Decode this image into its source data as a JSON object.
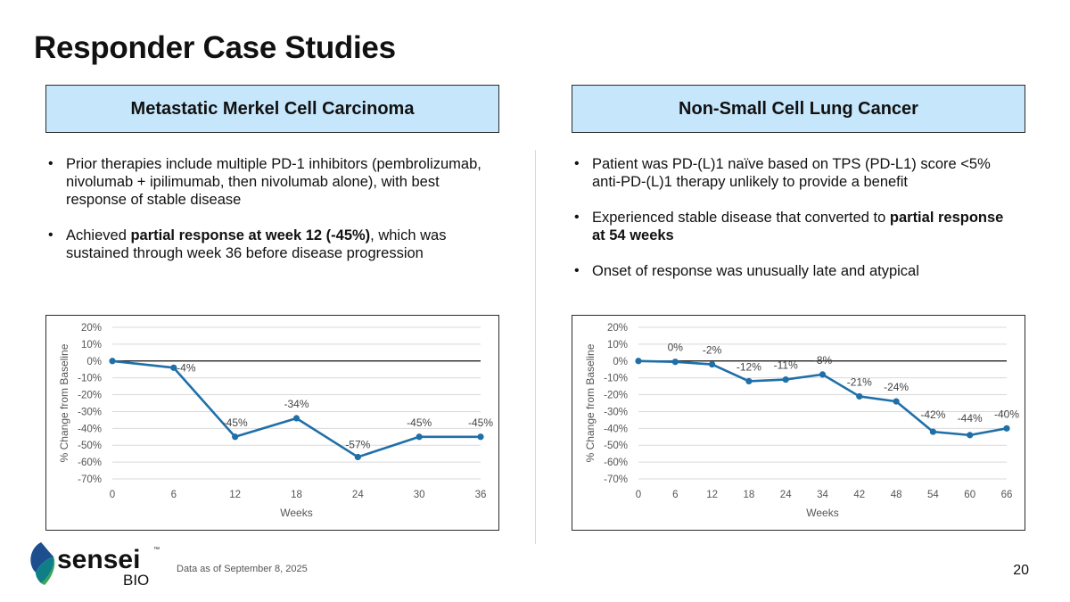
{
  "title": "Responder Case Studies",
  "left": {
    "header": "Metastatic Merkel Cell Carcinoma",
    "bullets": [
      {
        "parts": [
          {
            "t": "Prior therapies include multiple PD-1 inhibitors (pembrolizumab, nivolumab + ipilimumab, then nivolumab alone), with best response of stable disease",
            "b": false
          }
        ]
      },
      {
        "parts": [
          {
            "t": "Achieved ",
            "b": false
          },
          {
            "t": "partial response at week 12 (-45%)",
            "b": true
          },
          {
            "t": ", which was sustained through week 36 before disease progression",
            "b": false
          }
        ]
      }
    ]
  },
  "right": {
    "header": "Non-Small Cell Lung Cancer",
    "bullets": [
      {
        "parts": [
          {
            "t": "Patient was PD-(L)1 naïve based on TPS (PD-L1) score <5% anti-PD-(L)1 therapy unlikely to provide a benefit",
            "b": false
          }
        ]
      },
      {
        "parts": [
          {
            "t": "Experienced stable disease that converted to ",
            "b": false
          },
          {
            "t": "partial response at 54 weeks",
            "b": true
          }
        ]
      },
      {
        "parts": [
          {
            "t": "Onset of response was unusually late and atypical",
            "b": false
          }
        ]
      }
    ]
  },
  "chart_data": [
    {
      "type": "line",
      "xlabel": "Weeks",
      "ylabel": "% Change from Baseline",
      "ylim": [
        -70,
        20
      ],
      "yticks": [
        "20%",
        "10%",
        "0%",
        "-10%",
        "-20%",
        "-30%",
        "-40%",
        "-50%",
        "-60%",
        "-70%"
      ],
      "categories": [
        "0",
        "6",
        "12",
        "18",
        "24",
        "30",
        "36"
      ],
      "values": [
        0,
        -4,
        -45,
        -34,
        -57,
        -45,
        -45
      ],
      "data_labels": [
        "",
        "-4%",
        "-45%",
        "-34%",
        "-57%",
        "-45%",
        "-45%"
      ],
      "series_color": "#1f6fa8",
      "grid": true
    },
    {
      "type": "line",
      "xlabel": "Weeks",
      "ylabel": "% Change from Baseline",
      "ylim": [
        -70,
        20
      ],
      "yticks": [
        "20%",
        "10%",
        "0%",
        "-10%",
        "-20%",
        "-30%",
        "-40%",
        "-50%",
        "-60%",
        "-70%"
      ],
      "categories": [
        "0",
        "6",
        "12",
        "18",
        "24",
        "34",
        "42",
        "48",
        "54",
        "60",
        "66"
      ],
      "values": [
        0,
        -0.5,
        -2,
        -12,
        -11,
        -8,
        -21,
        -24,
        -42,
        -44,
        -40
      ],
      "data_labels": [
        "",
        "0%",
        "-2%",
        "-12%",
        "-11%",
        "-8%",
        "-21%",
        "-24%",
        "-42%",
        "-44%",
        "-40%"
      ],
      "series_color": "#1f6fa8",
      "grid": true
    }
  ],
  "footer": {
    "logo_word": "sensei",
    "logo_sub": "BIO",
    "logo_tm": "™",
    "note": "Data as of September 8, 2025",
    "page": "20"
  },
  "colors": {
    "header_fill": "#c6e6fb",
    "logo_teal": "#0e7f86",
    "logo_blue": "#1d4f8f",
    "logo_green": "#3aa655"
  }
}
